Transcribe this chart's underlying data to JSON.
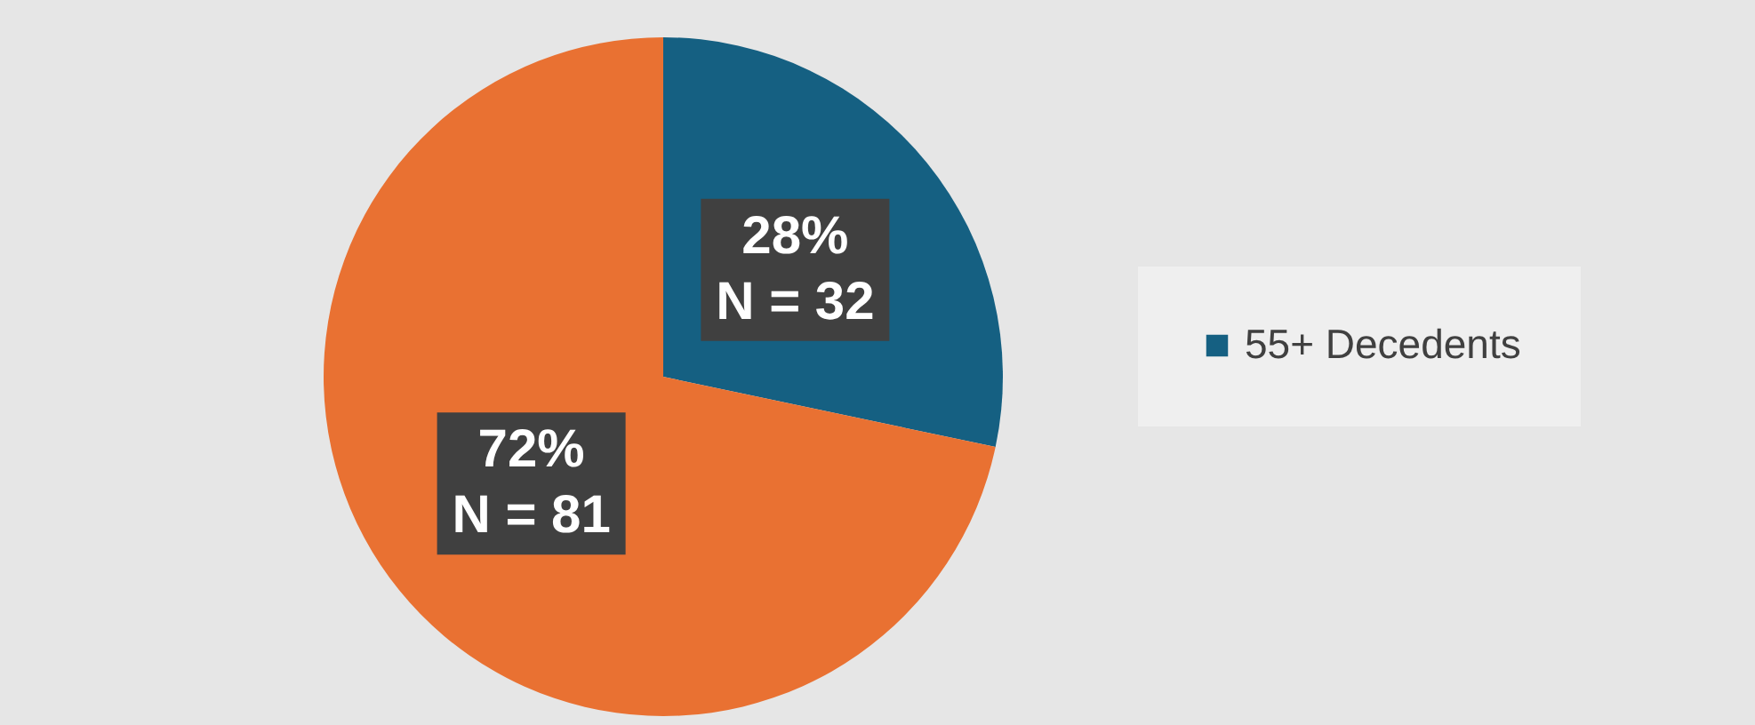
{
  "chart_data": {
    "type": "pie",
    "categories": [
      "55+ Decedents",
      null
    ],
    "values": [
      32,
      81
    ],
    "colors": [
      "#156082",
      "#e97132"
    ],
    "value_labels": [
      "28%\nN = 32",
      "72%\nN = 81"
    ],
    "legend": "right"
  }
}
